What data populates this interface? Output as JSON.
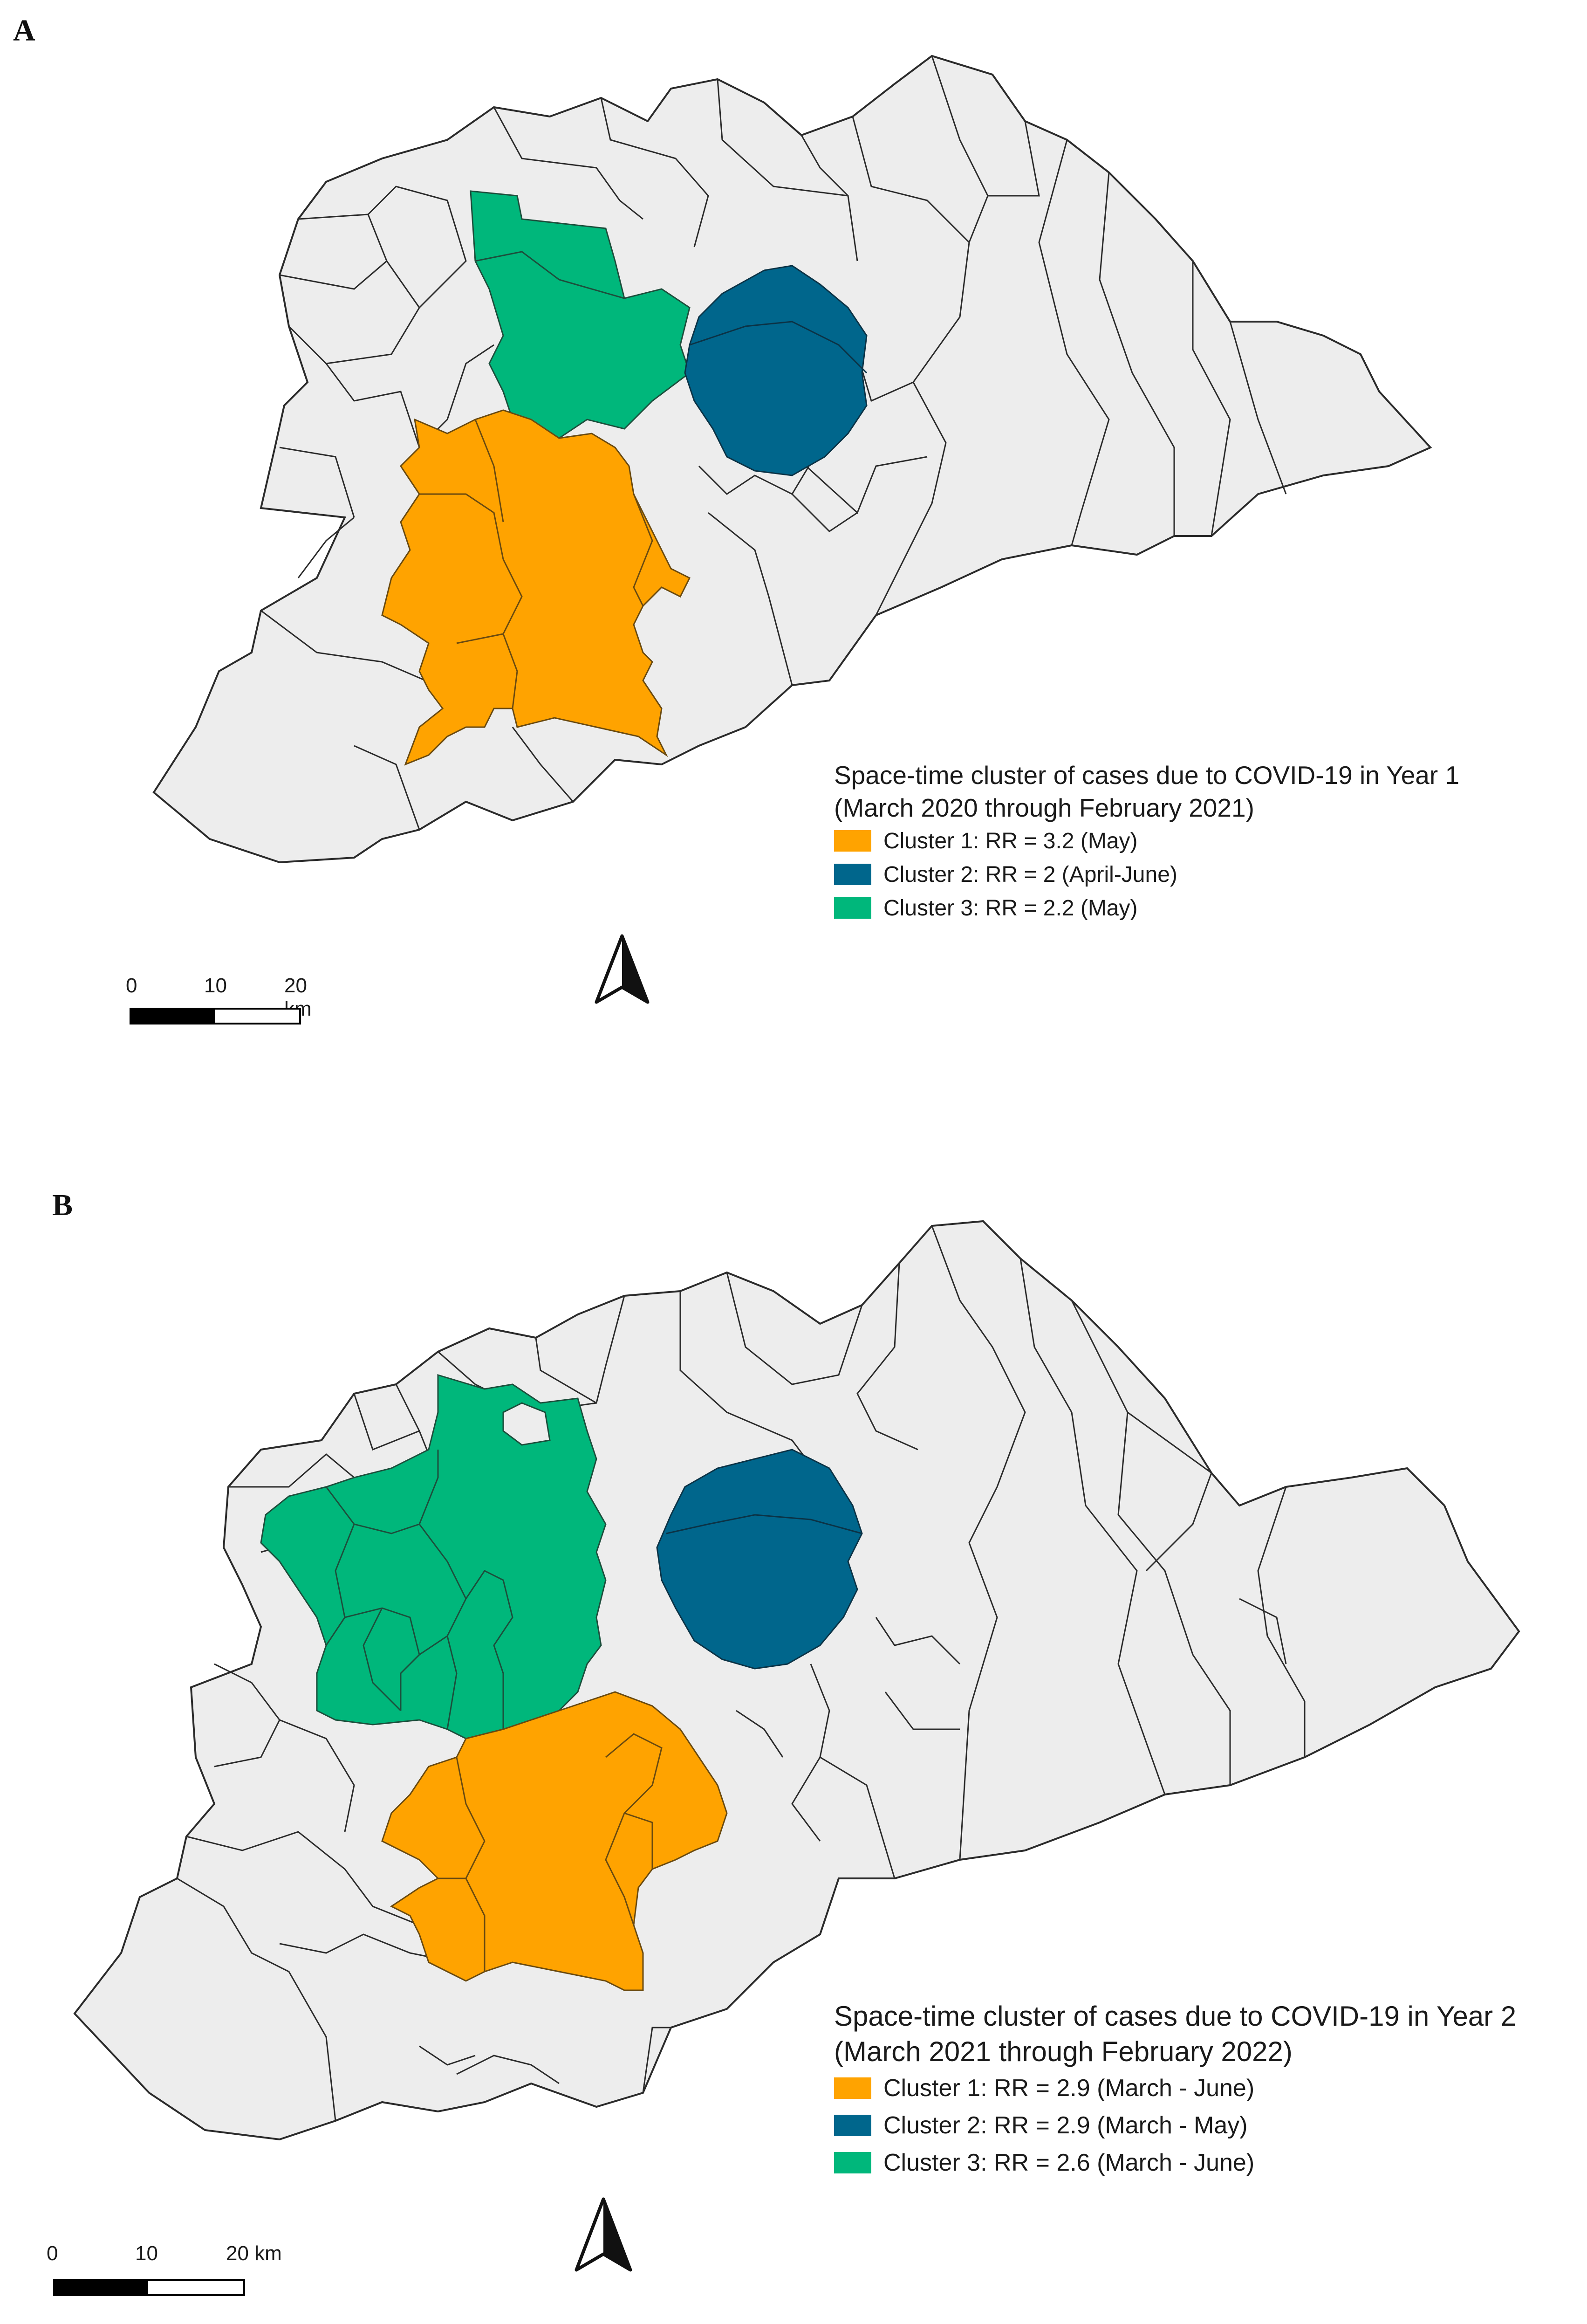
{
  "panels": [
    {
      "label": "A",
      "legend": {
        "title_line1": "Space-time cluster of cases due to COVID-19 in Year 1",
        "title_line2": "(March 2020 through February 2021)",
        "items": [
          {
            "label": "Cluster 1: RR = 3.2 (May)",
            "color": "#FFA300"
          },
          {
            "label": "Cluster 2: RR = 2 (April-June)",
            "color": "#00668C"
          },
          {
            "label": "Cluster 3: RR = 2.2 (May)",
            "color": "#00B77B"
          }
        ]
      },
      "scale": {
        "ticks": [
          "0",
          "10",
          "20 km"
        ]
      }
    },
    {
      "label": "B",
      "legend": {
        "title_line1": "Space-time cluster of cases due to COVID-19 in Year 2",
        "title_line2": "(March 2021 through February 2022)",
        "items": [
          {
            "label": "Cluster 1: RR = 2.9 (March - June)",
            "color": "#FFA300"
          },
          {
            "label": "Cluster 2: RR = 2.9 (March - May)",
            "color": "#00668C"
          },
          {
            "label": "Cluster 3: RR = 2.6 (March - June)",
            "color": "#00B77B"
          }
        ]
      },
      "scale": {
        "ticks": [
          "0",
          "10",
          "20 km"
        ]
      }
    }
  ],
  "colors": {
    "base_region": "#EDEDED",
    "border": "#2b2b2b"
  },
  "icons": {
    "north_arrow": "north-arrow-icon"
  }
}
